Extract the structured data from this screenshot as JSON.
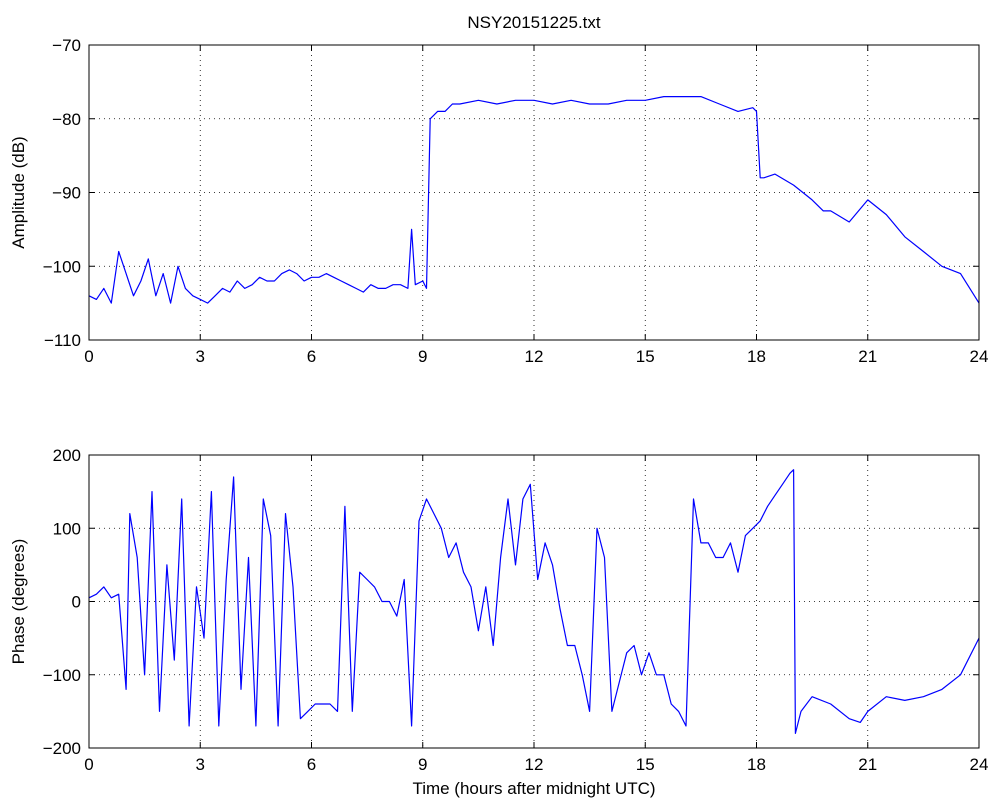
{
  "figure": {
    "title": "NSY20151225.txt"
  },
  "chart_data": [
    {
      "type": "line",
      "title": "NSY20151225.txt",
      "xlabel": "",
      "ylabel": "Amplitude (dB)",
      "xlim": [
        0,
        24
      ],
      "ylim": [
        -110,
        -70
      ],
      "xticks": [
        0,
        3,
        6,
        9,
        12,
        15,
        18,
        21,
        24
      ],
      "yticks": [
        -110,
        -100,
        -90,
        -80,
        -70
      ],
      "ytick_labels": [
        "−110",
        "−100",
        "−90",
        "−80",
        "−70"
      ],
      "grid": true,
      "line_color": "#0000ff",
      "series": [
        {
          "x": [
            0,
            0.2,
            0.4,
            0.6,
            0.8,
            1.0,
            1.2,
            1.4,
            1.6,
            1.8,
            2.0,
            2.2,
            2.4,
            2.6,
            2.8,
            3.0,
            3.2,
            3.4,
            3.6,
            3.8,
            4.0,
            4.2,
            4.4,
            4.6,
            4.8,
            5.0,
            5.2,
            5.4,
            5.6,
            5.8,
            6.0,
            6.2,
            6.4,
            6.6,
            6.8,
            7.0,
            7.2,
            7.4,
            7.6,
            7.8,
            8.0,
            8.2,
            8.4,
            8.6,
            8.7,
            8.8,
            9.0,
            9.1,
            9.2,
            9.4,
            9.6,
            9.8,
            10.0,
            10.5,
            11.0,
            11.5,
            12.0,
            12.5,
            13.0,
            13.5,
            14.0,
            14.5,
            15.0,
            15.5,
            16.0,
            16.5,
            17.0,
            17.5,
            17.9,
            18.0,
            18.1,
            18.2,
            18.5,
            19.0,
            19.5,
            19.8,
            20.0,
            20.5,
            21.0,
            21.5,
            22.0,
            22.5,
            23.0,
            23.5,
            24.0
          ],
          "y": [
            -104,
            -104.5,
            -103,
            -105,
            -98,
            -101,
            -104,
            -102,
            -99,
            -104,
            -101,
            -105,
            -100,
            -103,
            -104,
            -104.5,
            -105,
            -104,
            -103,
            -103.5,
            -102,
            -103,
            -102.5,
            -101.5,
            -102,
            -102,
            -101,
            -100.5,
            -101,
            -102,
            -101.5,
            -101.5,
            -101,
            -101.5,
            -102,
            -102.5,
            -103,
            -103.5,
            -102.5,
            -103,
            -103,
            -102.5,
            -102.5,
            -103,
            -95,
            -102.5,
            -102,
            -103,
            -80,
            -79,
            -79,
            -78,
            -78,
            -77.5,
            -78,
            -77.5,
            -77.5,
            -78,
            -77.5,
            -78,
            -78,
            -77.5,
            -77.5,
            -77,
            -77,
            -77,
            -78,
            -79,
            -78.5,
            -79,
            -88,
            -88,
            -87.5,
            -89,
            -91,
            -92.5,
            -92.5,
            -94,
            -91,
            -93,
            -96,
            -98,
            -100,
            -101,
            -105
          ]
        }
      ]
    },
    {
      "type": "line",
      "title": "",
      "xlabel": "Time (hours after midnight UTC)",
      "ylabel": "Phase (degrees)",
      "xlim": [
        0,
        24
      ],
      "ylim": [
        -200,
        200
      ],
      "xticks": [
        0,
        3,
        6,
        9,
        12,
        15,
        18,
        21,
        24
      ],
      "yticks": [
        -200,
        -100,
        0,
        100,
        200
      ],
      "ytick_labels": [
        "−200",
        "−100",
        "0",
        "100",
        "200"
      ],
      "grid": true,
      "line_color": "#0000ff",
      "series": [
        {
          "x": [
            0,
            0.2,
            0.4,
            0.6,
            0.8,
            1.0,
            1.1,
            1.3,
            1.5,
            1.7,
            1.9,
            2.1,
            2.3,
            2.5,
            2.7,
            2.9,
            3.1,
            3.3,
            3.5,
            3.7,
            3.9,
            4.1,
            4.3,
            4.5,
            4.7,
            4.9,
            5.1,
            5.3,
            5.5,
            5.7,
            5.9,
            6.1,
            6.3,
            6.5,
            6.7,
            6.9,
            7.1,
            7.3,
            7.5,
            7.7,
            7.9,
            8.1,
            8.3,
            8.5,
            8.7,
            8.9,
            9.1,
            9.3,
            9.5,
            9.7,
            9.9,
            10.1,
            10.3,
            10.5,
            10.7,
            10.9,
            11.1,
            11.3,
            11.5,
            11.7,
            11.9,
            12.1,
            12.3,
            12.5,
            12.7,
            12.9,
            13.1,
            13.3,
            13.5,
            13.7,
            13.9,
            14.1,
            14.3,
            14.5,
            14.7,
            14.9,
            15.1,
            15.3,
            15.5,
            15.7,
            15.9,
            16.1,
            16.3,
            16.5,
            16.7,
            16.9,
            17.1,
            17.3,
            17.5,
            17.7,
            17.9,
            18.1,
            18.3,
            18.5,
            18.7,
            18.9,
            19.0,
            19.05,
            19.2,
            19.5,
            20.0,
            20.5,
            20.8,
            21.0,
            21.5,
            22.0,
            22.5,
            23.0,
            23.5,
            24.0
          ],
          "y": [
            5,
            10,
            20,
            5,
            10,
            -120,
            120,
            60,
            -100,
            150,
            -150,
            50,
            -80,
            140,
            -170,
            20,
            -50,
            150,
            -170,
            30,
            170,
            -120,
            60,
            -170,
            140,
            90,
            -170,
            120,
            20,
            -160,
            -150,
            -140,
            -140,
            -140,
            -150,
            130,
            -150,
            40,
            30,
            20,
            0,
            0,
            -20,
            30,
            -170,
            110,
            140,
            120,
            100,
            60,
            80,
            40,
            20,
            -40,
            20,
            -60,
            60,
            140,
            50,
            140,
            160,
            30,
            80,
            50,
            -10,
            -60,
            -60,
            -100,
            -150,
            100,
            60,
            -150,
            -110,
            -70,
            -60,
            -100,
            -70,
            -100,
            -100,
            -140,
            -150,
            -170,
            140,
            80,
            80,
            60,
            60,
            80,
            40,
            90,
            100,
            110,
            130,
            145,
            160,
            175,
            180,
            -180,
            -150,
            -130,
            -140,
            -160,
            -165,
            -150,
            -130,
            -135,
            -130,
            -120,
            -100,
            -50
          ]
        }
      ]
    }
  ]
}
